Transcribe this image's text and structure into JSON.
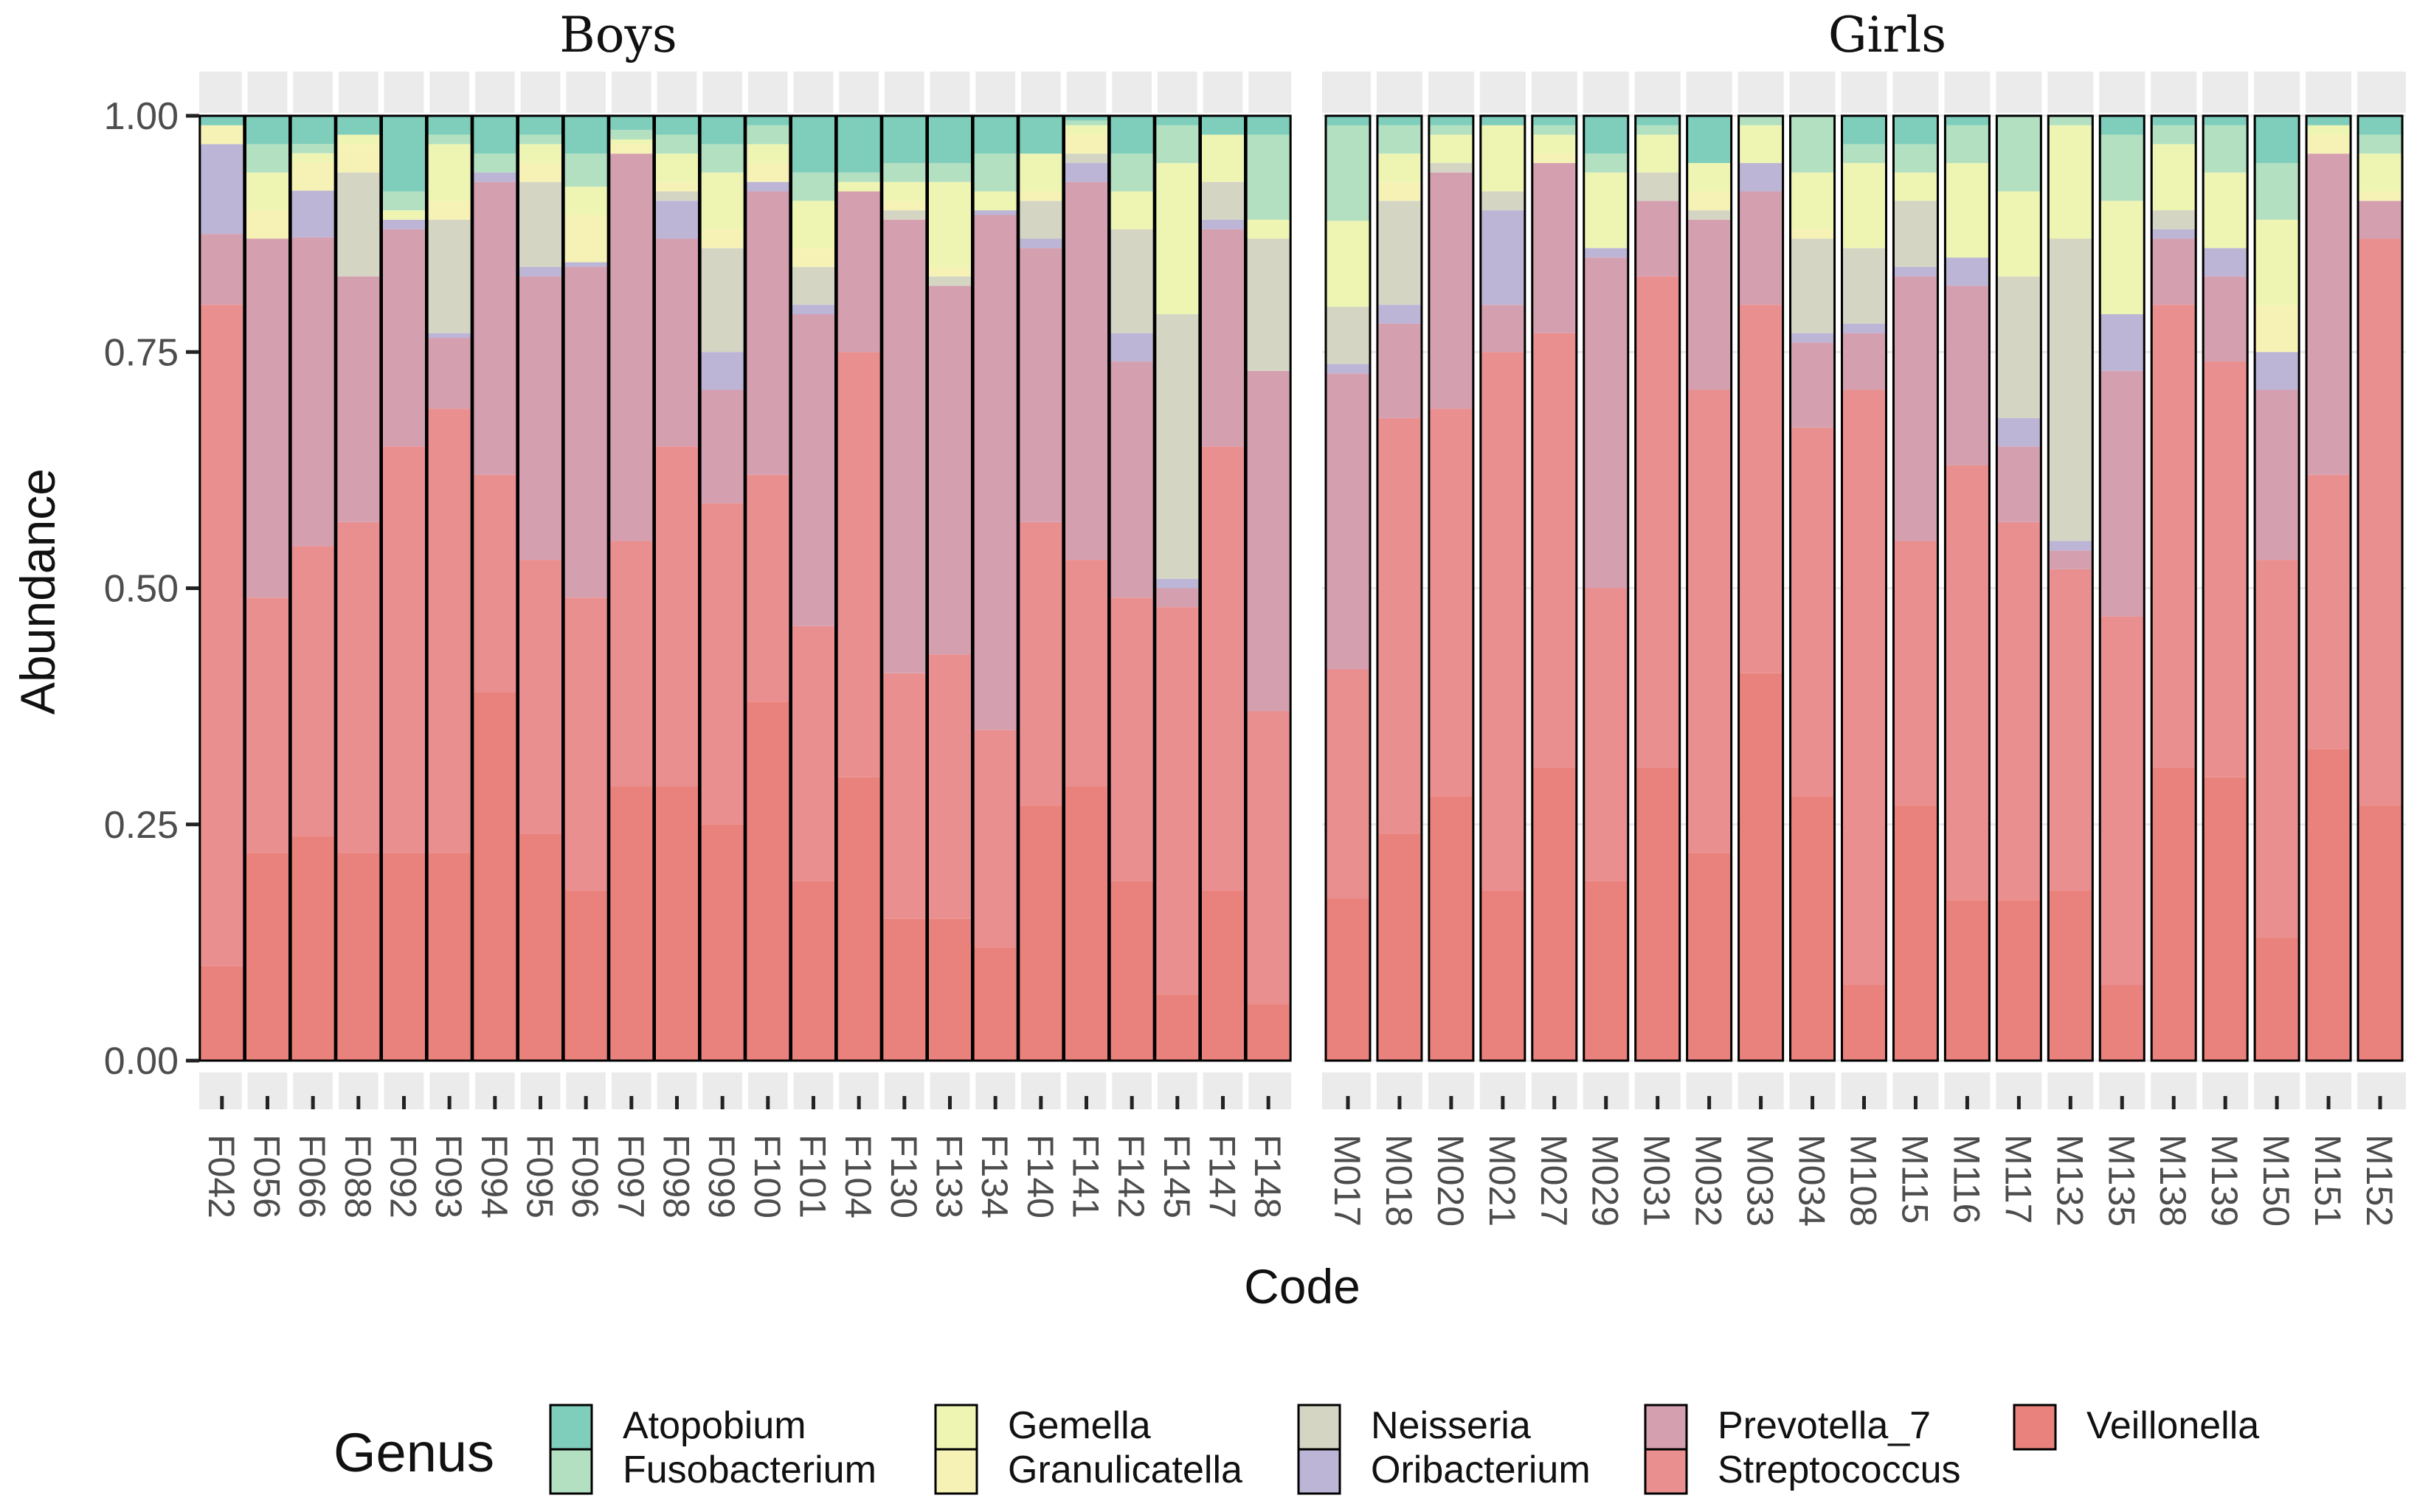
{
  "chart_data": {
    "type": "bar",
    "stacked": true,
    "normalized": true,
    "ylabel": "Abundance",
    "xlabel": "Code",
    "ylim": [
      0,
      1
    ],
    "yticks": [
      "0.00",
      "0.25",
      "0.50",
      "0.75",
      "1.00"
    ],
    "legend_title": "Genus",
    "legend_position": "bottom",
    "genera": [
      "Atopobium",
      "Fusobacterium",
      "Gemella",
      "Granulicatella",
      "Neisseria",
      "Oribacterium",
      "Prevotella_7",
      "Streptococcus",
      "Veillonella"
    ],
    "colors": {
      "Atopobium": "#7fcdbb",
      "Fusobacterium": "#b2e0c1",
      "Gemella": "#eef5b3",
      "Granulicatella": "#f6f2b6",
      "Neisseria": "#d5d5c4",
      "Oribacterium": "#bcb5d6",
      "Prevotella_7": "#d4a0b0",
      "Streptococcus": "#ea8f8f",
      "Veillonella": "#e9827c"
    },
    "bar_order": [
      "Veillonella",
      "Streptococcus",
      "Prevotella_7",
      "Oribacterium",
      "Neisseria",
      "Granulicatella",
      "Gemella",
      "Fusobacterium",
      "Atopobium"
    ],
    "facets": [
      {
        "title": "Boys",
        "samples": [
          {
            "code": "F042",
            "Veillonella": 0.1,
            "Streptococcus": 0.7,
            "Prevotella_7": 0.075,
            "Oribacterium": 0.095,
            "Neisseria": 0.0,
            "Granulicatella": 0.02,
            "Gemella": 0.0,
            "Fusobacterium": 0.0,
            "Atopobium": 0.01
          },
          {
            "code": "F056",
            "Veillonella": 0.22,
            "Streptococcus": 0.27,
            "Prevotella_7": 0.38,
            "Oribacterium": 0.0,
            "Neisseria": 0.0,
            "Granulicatella": 0.03,
            "Gemella": 0.04,
            "Fusobacterium": 0.03,
            "Atopobium": 0.03
          },
          {
            "code": "F066",
            "Veillonella": 0.24,
            "Streptococcus": 0.31,
            "Prevotella_7": 0.33,
            "Oribacterium": 0.05,
            "Neisseria": 0.0,
            "Granulicatella": 0.03,
            "Gemella": 0.01,
            "Fusobacterium": 0.01,
            "Atopobium": 0.03
          },
          {
            "code": "F088",
            "Veillonella": 0.22,
            "Streptococcus": 0.35,
            "Prevotella_7": 0.26,
            "Oribacterium": 0.0,
            "Neisseria": 0.11,
            "Granulicatella": 0.03,
            "Gemella": 0.01,
            "Fusobacterium": 0.0,
            "Atopobium": 0.02
          },
          {
            "code": "F092",
            "Veillonella": 0.22,
            "Streptococcus": 0.43,
            "Prevotella_7": 0.23,
            "Oribacterium": 0.01,
            "Neisseria": 0.0,
            "Granulicatella": 0.0,
            "Gemella": 0.01,
            "Fusobacterium": 0.02,
            "Atopobium": 0.08
          },
          {
            "code": "F093",
            "Veillonella": 0.22,
            "Streptococcus": 0.47,
            "Prevotella_7": 0.075,
            "Oribacterium": 0.005,
            "Neisseria": 0.12,
            "Granulicatella": 0.02,
            "Gemella": 0.06,
            "Fusobacterium": 0.01,
            "Atopobium": 0.02
          },
          {
            "code": "F094",
            "Veillonella": 0.39,
            "Streptococcus": 0.23,
            "Prevotella_7": 0.31,
            "Oribacterium": 0.01,
            "Neisseria": 0.0,
            "Granulicatella": 0.0,
            "Gemella": 0.0,
            "Fusobacterium": 0.02,
            "Atopobium": 0.04
          },
          {
            "code": "F095",
            "Veillonella": 0.24,
            "Streptococcus": 0.29,
            "Prevotella_7": 0.3,
            "Oribacterium": 0.01,
            "Neisseria": 0.09,
            "Granulicatella": 0.02,
            "Gemella": 0.02,
            "Fusobacterium": 0.01,
            "Atopobium": 0.02
          },
          {
            "code": "F096",
            "Veillonella": 0.18,
            "Streptococcus": 0.31,
            "Prevotella_7": 0.35,
            "Oribacterium": 0.005,
            "Neisseria": 0.0,
            "Granulicatella": 0.05,
            "Gemella": 0.03,
            "Fusobacterium": 0.035,
            "Atopobium": 0.04
          },
          {
            "code": "F097",
            "Veillonella": 0.29,
            "Streptococcus": 0.26,
            "Prevotella_7": 0.41,
            "Oribacterium": 0.0,
            "Neisseria": 0.0,
            "Granulicatella": 0.01,
            "Gemella": 0.005,
            "Fusobacterium": 0.01,
            "Atopobium": 0.015
          },
          {
            "code": "F098",
            "Veillonella": 0.29,
            "Streptococcus": 0.36,
            "Prevotella_7": 0.22,
            "Oribacterium": 0.04,
            "Neisseria": 0.01,
            "Granulicatella": 0.01,
            "Gemella": 0.03,
            "Fusobacterium": 0.02,
            "Atopobium": 0.02
          },
          {
            "code": "F099",
            "Veillonella": 0.25,
            "Streptococcus": 0.34,
            "Prevotella_7": 0.12,
            "Oribacterium": 0.04,
            "Neisseria": 0.11,
            "Granulicatella": 0.02,
            "Gemella": 0.06,
            "Fusobacterium": 0.03,
            "Atopobium": 0.03
          },
          {
            "code": "F100",
            "Veillonella": 0.38,
            "Streptococcus": 0.24,
            "Prevotella_7": 0.3,
            "Oribacterium": 0.01,
            "Neisseria": 0.0,
            "Granulicatella": 0.02,
            "Gemella": 0.02,
            "Fusobacterium": 0.02,
            "Atopobium": 0.01
          },
          {
            "code": "F101",
            "Veillonella": 0.19,
            "Streptococcus": 0.27,
            "Prevotella_7": 0.33,
            "Oribacterium": 0.01,
            "Neisseria": 0.04,
            "Granulicatella": 0.02,
            "Gemella": 0.05,
            "Fusobacterium": 0.03,
            "Atopobium": 0.06
          },
          {
            "code": "F104",
            "Veillonella": 0.3,
            "Streptococcus": 0.45,
            "Prevotella_7": 0.17,
            "Oribacterium": 0.0,
            "Neisseria": 0.0,
            "Granulicatella": 0.0,
            "Gemella": 0.01,
            "Fusobacterium": 0.01,
            "Atopobium": 0.06
          },
          {
            "code": "F130",
            "Veillonella": 0.15,
            "Streptococcus": 0.26,
            "Prevotella_7": 0.48,
            "Oribacterium": 0.0,
            "Neisseria": 0.01,
            "Granulicatella": 0.01,
            "Gemella": 0.02,
            "Fusobacterium": 0.02,
            "Atopobium": 0.05
          },
          {
            "code": "F133",
            "Veillonella": 0.15,
            "Streptococcus": 0.28,
            "Prevotella_7": 0.39,
            "Oribacterium": 0.0,
            "Neisseria": 0.01,
            "Granulicatella": 0.01,
            "Gemella": 0.09,
            "Fusobacterium": 0.02,
            "Atopobium": 0.05
          },
          {
            "code": "F134",
            "Veillonella": 0.12,
            "Streptococcus": 0.23,
            "Prevotella_7": 0.545,
            "Oribacterium": 0.005,
            "Neisseria": 0.0,
            "Granulicatella": 0.0,
            "Gemella": 0.02,
            "Fusobacterium": 0.04,
            "Atopobium": 0.04
          },
          {
            "code": "F140",
            "Veillonella": 0.27,
            "Streptococcus": 0.3,
            "Prevotella_7": 0.29,
            "Oribacterium": 0.01,
            "Neisseria": 0.04,
            "Granulicatella": 0.01,
            "Gemella": 0.04,
            "Fusobacterium": 0.0,
            "Atopobium": 0.04
          },
          {
            "code": "F141",
            "Veillonella": 0.29,
            "Streptococcus": 0.24,
            "Prevotella_7": 0.4,
            "Oribacterium": 0.02,
            "Neisseria": 0.01,
            "Granulicatella": 0.02,
            "Gemella": 0.01,
            "Fusobacterium": 0.005,
            "Atopobium": 0.005
          },
          {
            "code": "F142",
            "Veillonella": 0.19,
            "Streptococcus": 0.3,
            "Prevotella_7": 0.25,
            "Oribacterium": 0.03,
            "Neisseria": 0.11,
            "Granulicatella": 0.0,
            "Gemella": 0.04,
            "Fusobacterium": 0.04,
            "Atopobium": 0.04
          },
          {
            "code": "F145",
            "Veillonella": 0.07,
            "Streptococcus": 0.41,
            "Prevotella_7": 0.02,
            "Oribacterium": 0.01,
            "Neisseria": 0.28,
            "Granulicatella": 0.0,
            "Gemella": 0.16,
            "Fusobacterium": 0.04,
            "Atopobium": 0.01
          },
          {
            "code": "F147",
            "Veillonella": 0.18,
            "Streptococcus": 0.47,
            "Prevotella_7": 0.23,
            "Oribacterium": 0.01,
            "Neisseria": 0.04,
            "Granulicatella": 0.0,
            "Gemella": 0.05,
            "Fusobacterium": 0.0,
            "Atopobium": 0.02
          },
          {
            "code": "F148",
            "Veillonella": 0.06,
            "Streptococcus": 0.31,
            "Prevotella_7": 0.36,
            "Oribacterium": 0.0,
            "Neisseria": 0.14,
            "Granulicatella": 0.0,
            "Gemella": 0.02,
            "Fusobacterium": 0.09,
            "Atopobium": 0.02
          }
        ]
      },
      {
        "title": "Girls",
        "samples": [
          {
            "code": "M017",
            "Veillonella": 0.17,
            "Streptococcus": 0.24,
            "Prevotella_7": 0.31,
            "Oribacterium": 0.01,
            "Neisseria": 0.06,
            "Granulicatella": 0.0,
            "Gemella": 0.09,
            "Fusobacterium": 0.1,
            "Atopobium": 0.01
          },
          {
            "code": "M018",
            "Veillonella": 0.24,
            "Streptococcus": 0.44,
            "Prevotella_7": 0.1,
            "Oribacterium": 0.02,
            "Neisseria": 0.11,
            "Granulicatella": 0.02,
            "Gemella": 0.03,
            "Fusobacterium": 0.03,
            "Atopobium": 0.01
          },
          {
            "code": "M020",
            "Veillonella": 0.28,
            "Streptococcus": 0.41,
            "Prevotella_7": 0.25,
            "Oribacterium": 0.0,
            "Neisseria": 0.01,
            "Granulicatella": 0.0,
            "Gemella": 0.03,
            "Fusobacterium": 0.01,
            "Atopobium": 0.01
          },
          {
            "code": "M021",
            "Veillonella": 0.18,
            "Streptococcus": 0.57,
            "Prevotella_7": 0.05,
            "Oribacterium": 0.1,
            "Neisseria": 0.02,
            "Granulicatella": 0.0,
            "Gemella": 0.07,
            "Fusobacterium": 0.0,
            "Atopobium": 0.01
          },
          {
            "code": "M027",
            "Veillonella": 0.31,
            "Streptococcus": 0.46,
            "Prevotella_7": 0.18,
            "Oribacterium": 0.0,
            "Neisseria": 0.0,
            "Granulicatella": 0.01,
            "Gemella": 0.02,
            "Fusobacterium": 0.01,
            "Atopobium": 0.01
          },
          {
            "code": "M029",
            "Veillonella": 0.19,
            "Streptococcus": 0.31,
            "Prevotella_7": 0.35,
            "Oribacterium": 0.01,
            "Neisseria": 0.0,
            "Granulicatella": 0.0,
            "Gemella": 0.08,
            "Fusobacterium": 0.02,
            "Atopobium": 0.04
          },
          {
            "code": "M031",
            "Veillonella": 0.31,
            "Streptococcus": 0.52,
            "Prevotella_7": 0.08,
            "Oribacterium": 0.0,
            "Neisseria": 0.03,
            "Granulicatella": 0.0,
            "Gemella": 0.04,
            "Fusobacterium": 0.01,
            "Atopobium": 0.01
          },
          {
            "code": "M032",
            "Veillonella": 0.22,
            "Streptococcus": 0.49,
            "Prevotella_7": 0.18,
            "Oribacterium": 0.0,
            "Neisseria": 0.01,
            "Granulicatella": 0.02,
            "Gemella": 0.03,
            "Fusobacterium": 0.0,
            "Atopobium": 0.05
          },
          {
            "code": "M033",
            "Veillonella": 0.41,
            "Streptococcus": 0.39,
            "Prevotella_7": 0.12,
            "Oribacterium": 0.03,
            "Neisseria": 0.0,
            "Granulicatella": 0.0,
            "Gemella": 0.04,
            "Fusobacterium": 0.01,
            "Atopobium": 0.0
          },
          {
            "code": "M034",
            "Veillonella": 0.28,
            "Streptococcus": 0.39,
            "Prevotella_7": 0.09,
            "Oribacterium": 0.01,
            "Neisseria": 0.1,
            "Granulicatella": 0.01,
            "Gemella": 0.06,
            "Fusobacterium": 0.06,
            "Atopobium": 0.0
          },
          {
            "code": "M108",
            "Veillonella": 0.08,
            "Streptococcus": 0.63,
            "Prevotella_7": 0.06,
            "Oribacterium": 0.01,
            "Neisseria": 0.08,
            "Granulicatella": 0.0,
            "Gemella": 0.09,
            "Fusobacterium": 0.02,
            "Atopobium": 0.03
          },
          {
            "code": "M115",
            "Veillonella": 0.27,
            "Streptococcus": 0.28,
            "Prevotella_7": 0.28,
            "Oribacterium": 0.01,
            "Neisseria": 0.07,
            "Granulicatella": 0.0,
            "Gemella": 0.03,
            "Fusobacterium": 0.03,
            "Atopobium": 0.03
          },
          {
            "code": "M116",
            "Veillonella": 0.17,
            "Streptococcus": 0.46,
            "Prevotella_7": 0.19,
            "Oribacterium": 0.03,
            "Neisseria": 0.0,
            "Granulicatella": 0.0,
            "Gemella": 0.1,
            "Fusobacterium": 0.04,
            "Atopobium": 0.01
          },
          {
            "code": "M117",
            "Veillonella": 0.17,
            "Streptococcus": 0.4,
            "Prevotella_7": 0.08,
            "Oribacterium": 0.03,
            "Neisseria": 0.15,
            "Granulicatella": 0.0,
            "Gemella": 0.09,
            "Fusobacterium": 0.08,
            "Atopobium": 0.0
          },
          {
            "code": "M132",
            "Veillonella": 0.18,
            "Streptococcus": 0.34,
            "Prevotella_7": 0.02,
            "Oribacterium": 0.01,
            "Neisseria": 0.32,
            "Granulicatella": 0.0,
            "Gemella": 0.12,
            "Fusobacterium": 0.01,
            "Atopobium": 0.0
          },
          {
            "code": "M135",
            "Veillonella": 0.08,
            "Streptococcus": 0.39,
            "Prevotella_7": 0.26,
            "Oribacterium": 0.06,
            "Neisseria": 0.0,
            "Granulicatella": 0.0,
            "Gemella": 0.12,
            "Fusobacterium": 0.07,
            "Atopobium": 0.02
          },
          {
            "code": "M138",
            "Veillonella": 0.31,
            "Streptococcus": 0.49,
            "Prevotella_7": 0.07,
            "Oribacterium": 0.01,
            "Neisseria": 0.02,
            "Granulicatella": 0.0,
            "Gemella": 0.07,
            "Fusobacterium": 0.02,
            "Atopobium": 0.01
          },
          {
            "code": "M139",
            "Veillonella": 0.3,
            "Streptococcus": 0.44,
            "Prevotella_7": 0.09,
            "Oribacterium": 0.03,
            "Neisseria": 0.0,
            "Granulicatella": 0.0,
            "Gemella": 0.08,
            "Fusobacterium": 0.05,
            "Atopobium": 0.01
          },
          {
            "code": "M150",
            "Veillonella": 0.13,
            "Streptococcus": 0.4,
            "Prevotella_7": 0.18,
            "Oribacterium": 0.04,
            "Neisseria": 0.0,
            "Granulicatella": 0.05,
            "Gemella": 0.09,
            "Fusobacterium": 0.06,
            "Atopobium": 0.05
          },
          {
            "code": "M151",
            "Veillonella": 0.33,
            "Streptococcus": 0.29,
            "Prevotella_7": 0.34,
            "Oribacterium": 0.0,
            "Neisseria": 0.0,
            "Granulicatella": 0.02,
            "Gemella": 0.01,
            "Fusobacterium": 0.0,
            "Atopobium": 0.01
          },
          {
            "code": "M152",
            "Veillonella": 0.27,
            "Streptococcus": 0.6,
            "Prevotella_7": 0.04,
            "Oribacterium": 0.0,
            "Neisseria": 0.0,
            "Granulicatella": 0.01,
            "Gemella": 0.04,
            "Fusobacterium": 0.02,
            "Atopobium": 0.02
          }
        ]
      }
    ]
  }
}
